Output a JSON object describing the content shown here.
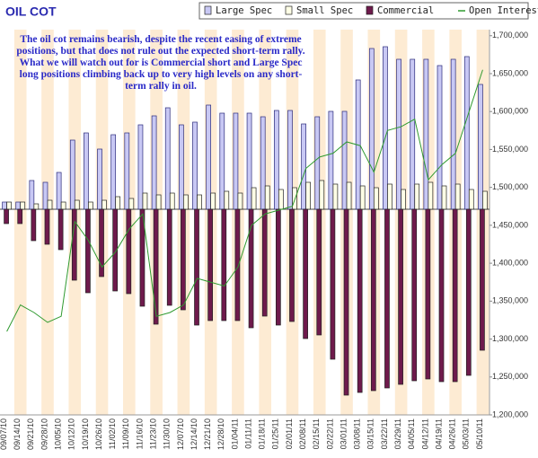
{
  "chart_data": {
    "type": "bar",
    "title": "OIL COT",
    "annotation": "The oil cot remains bearish, despite the recent easing of extreme positions, but that does not rule out the expected short-term rally. What we will watch out for is Commercial short and Large Spec long positions climbing back up to very high levels on any short-term rally in oil.",
    "categories": [
      "09/07/10",
      "09/14/10",
      "09/21/10",
      "09/28/10",
      "10/05/10",
      "10/12/10",
      "10/19/10",
      "10/26/10",
      "11/02/10",
      "11/09/10",
      "11/16/10",
      "11/23/10",
      "11/30/10",
      "12/07/10",
      "12/14/10",
      "12/21/10",
      "12/28/10",
      "01/04/11",
      "01/11/11",
      "01/18/11",
      "01/25/11",
      "02/01/11",
      "02/08/11",
      "02/15/11",
      "02/22/11",
      "03/01/11",
      "03/08/11",
      "03/15/11",
      "03/22/11",
      "03/29/11",
      "04/05/11",
      "04/12/11",
      "04/19/11",
      "04/26/11",
      "05/03/11",
      "05/10/11"
    ],
    "series": [
      {
        "name": "Large Spec",
        "color": "#c8c8f4",
        "values": [
          8,
          8,
          32,
          30,
          41,
          77,
          85,
          67,
          83,
          85,
          94,
          104,
          113,
          94,
          97,
          116,
          107,
          107,
          107,
          103,
          110,
          110,
          95,
          103,
          109,
          109,
          144,
          179,
          181,
          167,
          167,
          167,
          160,
          167,
          170,
          139
        ]
      },
      {
        "name": "Small Spec",
        "color": "#ffffe6",
        "values": [
          8,
          8,
          6,
          10,
          8,
          10,
          8,
          10,
          14,
          12,
          18,
          16,
          18,
          16,
          16,
          18,
          20,
          18,
          24,
          26,
          22,
          24,
          30,
          32,
          28,
          30,
          26,
          24,
          28,
          22,
          28,
          30,
          26,
          28,
          22,
          20
        ]
      },
      {
        "name": "Commercial",
        "color": "#6e1a4c",
        "values": [
          -16,
          -16,
          -35,
          -39,
          -45,
          -79,
          -93,
          -75,
          -91,
          -94,
          -108,
          -128,
          -107,
          -112,
          -129,
          -124,
          -124,
          -124,
          -132,
          -119,
          -129,
          -125,
          -144,
          -140,
          -167,
          -207,
          -204,
          -202,
          -199,
          -195,
          -191,
          -189,
          -192,
          -192,
          -185,
          -157
        ]
      },
      {
        "name": "Open Interest",
        "color": "#2f9a2f",
        "type": "line",
        "axis": "y2",
        "values": [
          1310000,
          1345000,
          1335000,
          1322000,
          1330000,
          1455000,
          1430000,
          1395000,
          1415000,
          1445000,
          1465000,
          1330000,
          1335000,
          1345000,
          1380000,
          1375000,
          1370000,
          1395000,
          1450000,
          1465000,
          1470000,
          1475000,
          1525000,
          1540000,
          1545000,
          1560000,
          1555000,
          1520000,
          1575000,
          1580000,
          1590000,
          1510000,
          1530000,
          1545000,
          1600000,
          1655000
        ]
      }
    ],
    "ylim": [
      -229,
      200
    ],
    "y2lim": [
      1200000,
      1708000
    ],
    "y2ticks": [
      {
        "value": 1200000,
        "label": "1,200,000"
      },
      {
        "value": 1250000,
        "label": "1,250,000"
      },
      {
        "value": 1300000,
        "label": "1,300,000"
      },
      {
        "value": 1350000,
        "label": "1,350,000"
      },
      {
        "value": 1400000,
        "label": "1,400,000"
      },
      {
        "value": 1450000,
        "label": "1,450,000"
      },
      {
        "value": 1500000,
        "label": "1,500,000"
      },
      {
        "value": 1550000,
        "label": "1,550,000"
      },
      {
        "value": 1600000,
        "label": "1,600,000"
      },
      {
        "value": 1650000,
        "label": "1,650,000"
      },
      {
        "value": 1700000,
        "label": "1,700,000"
      }
    ],
    "legend": "top-right"
  }
}
